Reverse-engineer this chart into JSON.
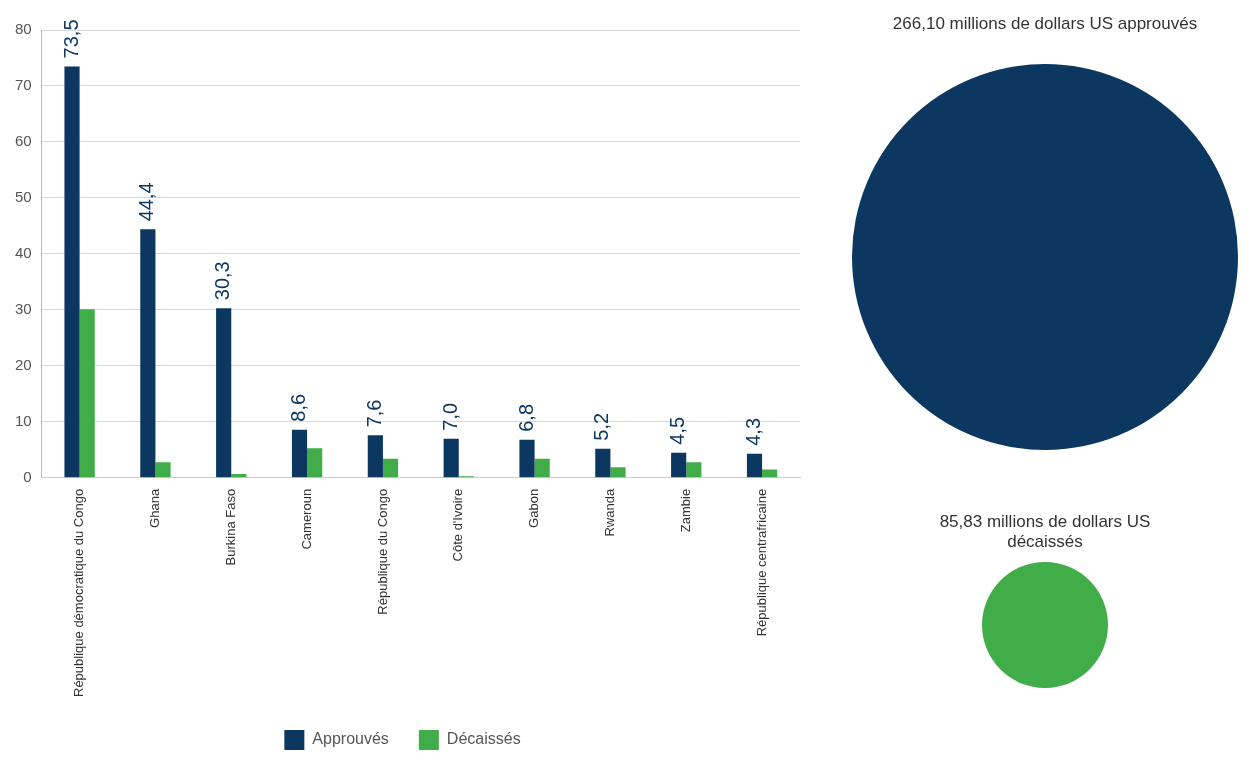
{
  "chart_data": [
    {
      "type": "bar",
      "categories": [
        "République démocratique du Congo",
        "Ghana",
        "Burkina Faso",
        "Cameroun",
        "République du Congo",
        "Côte d'Ivoire",
        "Gabon",
        "Rwanda",
        "Zambie",
        "République centrafricaine"
      ],
      "series": [
        {
          "name": "Approuvés",
          "color": "#0c3761",
          "values": [
            73.5,
            44.4,
            30.3,
            8.6,
            7.6,
            7.0,
            6.8,
            5.2,
            4.5,
            4.3
          ],
          "value_labels": [
            "73,5",
            "44,4",
            "30,3",
            "8,6",
            "7,6",
            "7,0",
            "6,8",
            "5,2",
            "4,5",
            "4,3"
          ]
        },
        {
          "name": "Décaissés",
          "color": "#41ad49",
          "values": [
            30.1,
            2.8,
            0.7,
            5.3,
            3.4,
            0.3,
            3.4,
            1.9,
            2.8,
            1.5
          ]
        }
      ],
      "ylim": [
        0,
        80
      ],
      "yticks": [
        0,
        10,
        20,
        30,
        40,
        50,
        60,
        70,
        80
      ],
      "grid": "y",
      "legend": "bottom"
    },
    {
      "type": "other",
      "annotations": [
        "266,10 millions de dollars US approuvés",
        "85,83 millions de dollars US décaissés"
      ]
    }
  ]
}
